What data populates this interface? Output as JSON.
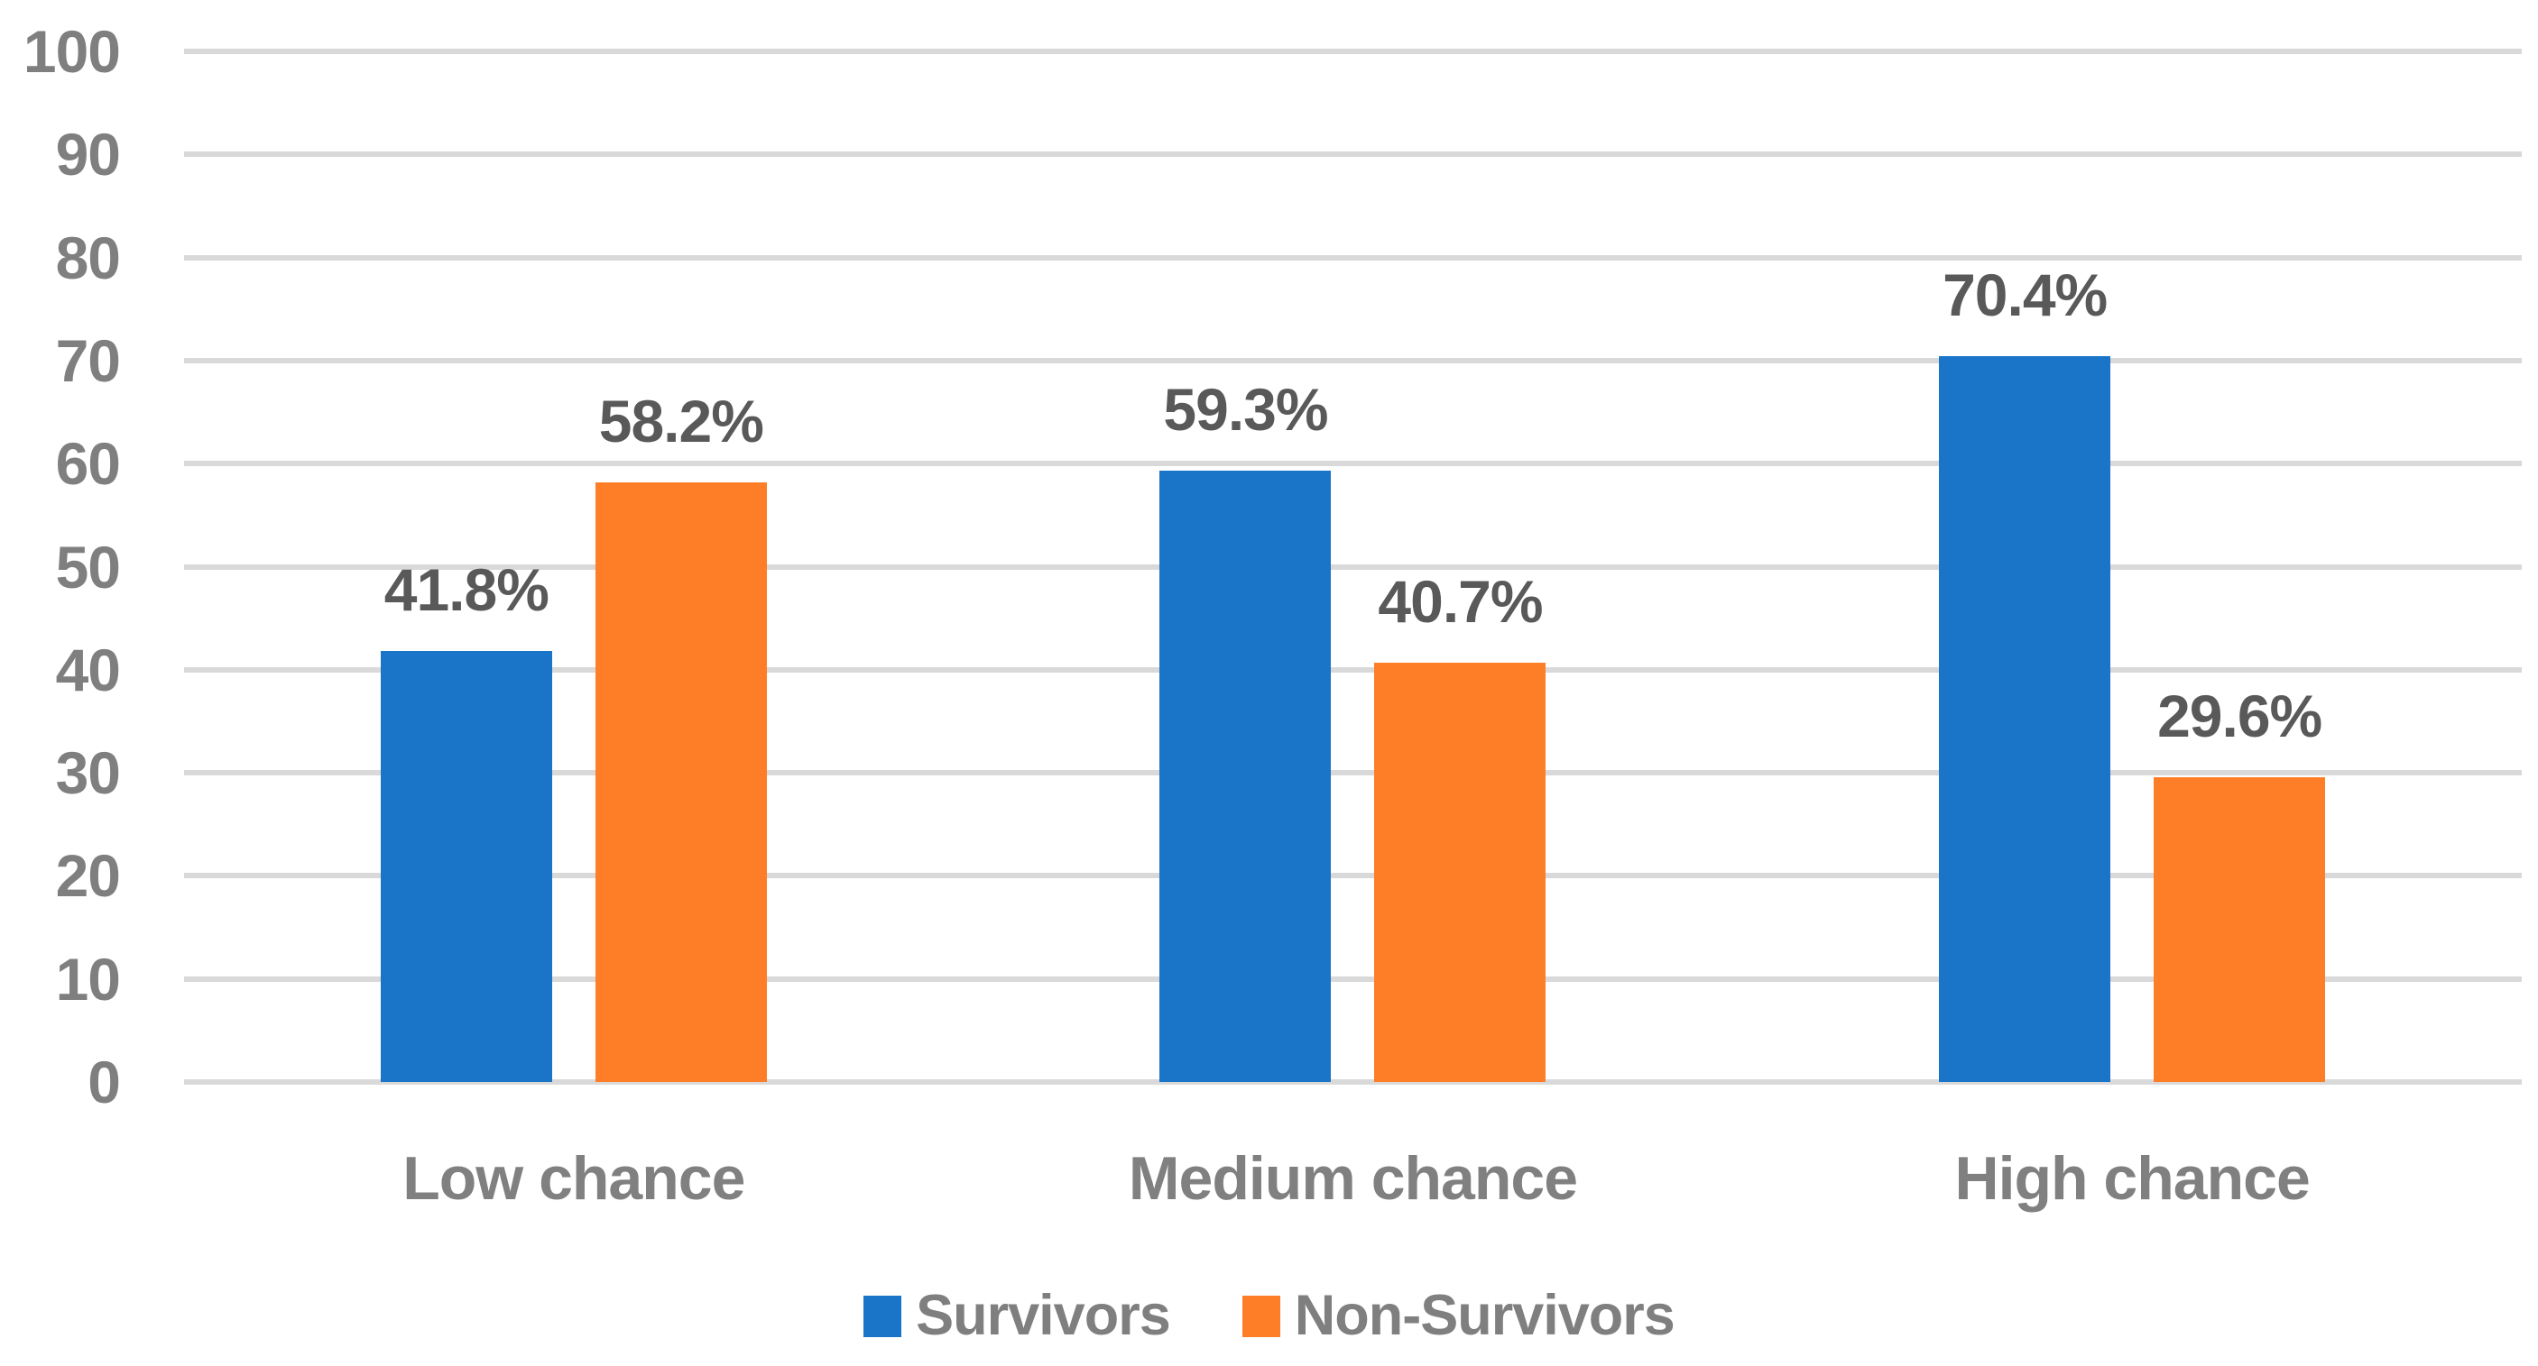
{
  "chart_data": {
    "type": "bar",
    "title": "",
    "xlabel": "",
    "ylabel": "",
    "categories": [
      "Low chance",
      "Medium chance",
      "High chance"
    ],
    "series": [
      {
        "name": "Survivors",
        "color": "#1a74c8",
        "values": [
          41.8,
          59.3,
          70.4
        ],
        "labels": [
          "41.8%",
          "59.3%",
          "70.4%"
        ]
      },
      {
        "name": "Non-Survivors",
        "color": "#fd7e27",
        "values": [
          58.2,
          40.7,
          29.6
        ],
        "labels": [
          "58.2%",
          "40.7%",
          "29.6%"
        ]
      }
    ],
    "ylim": [
      0,
      100
    ],
    "yticks": [
      0,
      10,
      20,
      30,
      40,
      50,
      60,
      70,
      80,
      90,
      100
    ],
    "grid": true,
    "legend_position": "bottom",
    "colors": {
      "gridline": "#d9d9d9",
      "tick_label": "#7f7f7f",
      "category_label": "#808080",
      "data_label": "#595959",
      "background": "#ffffff"
    }
  }
}
